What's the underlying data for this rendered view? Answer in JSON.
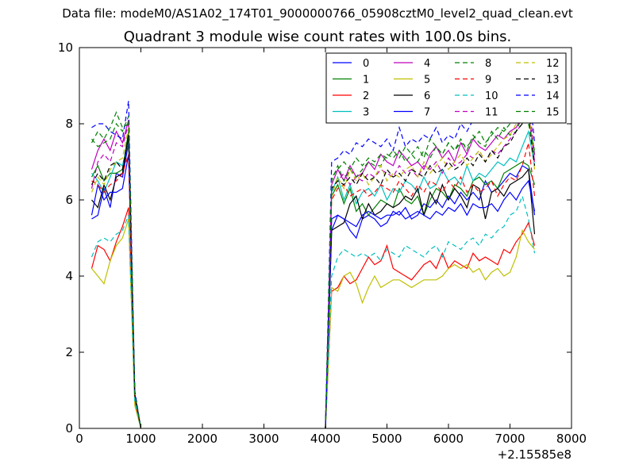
{
  "suptitle": "Data file: modeM0/AS1A02_174T01_9000000766_05908cztM0_level2_quad_clean.evt",
  "chart_data": {
    "type": "line",
    "title": "Quadrant 3 module wise count rates with 100.0s bins.",
    "xlabel": "",
    "ylabel": "",
    "x_offset_label": "+2.15585e8",
    "xlim": [
      0,
      8000
    ],
    "ylim": [
      0,
      10
    ],
    "xticks": [
      "0",
      "1000",
      "2000",
      "3000",
      "4000",
      "5000",
      "6000",
      "7000",
      "8000"
    ],
    "yticks": [
      "0",
      "2",
      "4",
      "6",
      "8",
      "10"
    ],
    "grid": false,
    "legend_position": "top-right",
    "legend_columns": 4,
    "x_segments": [
      [
        200,
        300,
        400,
        500,
        600,
        700,
        800,
        900,
        1000
      ],
      [
        4000,
        4100,
        4200,
        4300,
        4400,
        4500,
        4600,
        4700,
        4800,
        4900,
        5000,
        5100,
        5200,
        5300,
        5400,
        5500,
        5600,
        5700,
        5800,
        5900,
        6000,
        6100,
        6200,
        6300,
        6400,
        6500,
        6600,
        6700,
        6800,
        6900,
        7000,
        7100,
        7200,
        7300,
        7400
      ]
    ],
    "series": [
      {
        "name": "0",
        "color": "#0000ff",
        "dashed": false,
        "values": [
          [
            5.5,
            5.6,
            6.3,
            5.8,
            6.7,
            6.6,
            7.5,
            0.8,
            0
          ],
          [
            0,
            5.2,
            5.6,
            5.5,
            5.2,
            5.0,
            5.5,
            5.6,
            5.5,
            5.3,
            5.4,
            5.7,
            5.6,
            5.8,
            5.5,
            5.6,
            5.9,
            5.8,
            6.0,
            5.8,
            6.1,
            5.9,
            6.2,
            6.0,
            6.2,
            6.0,
            6.5,
            6.2,
            6.3,
            6.5,
            6.7,
            6.6,
            6.9,
            6.8,
            5.6
          ]
        ]
      },
      {
        "name": "1",
        "color": "#008000",
        "dashed": false,
        "values": [
          [
            6.6,
            6.9,
            6.5,
            6.7,
            6.7,
            6.8,
            7.8,
            0.9,
            0
          ],
          [
            0,
            6.1,
            6.4,
            5.9,
            6.3,
            5.7,
            5.9,
            5.6,
            5.8,
            6.0,
            5.9,
            5.8,
            6.3,
            6.0,
            5.9,
            6.1,
            5.6,
            6.0,
            6.3,
            6.2,
            6.0,
            6.4,
            6.3,
            6.1,
            6.5,
            6.6,
            6.4,
            6.5,
            6.3,
            6.7,
            6.8,
            6.9,
            7.0,
            6.9,
            6.4
          ]
        ]
      },
      {
        "name": "2",
        "color": "#ff0000",
        "dashed": false,
        "values": [
          [
            4.2,
            4.8,
            4.7,
            4.4,
            4.9,
            5.3,
            5.8,
            0.7,
            0
          ],
          [
            0,
            3.6,
            3.7,
            4.0,
            3.8,
            3.9,
            4.2,
            4.5,
            4.3,
            4.4,
            4.8,
            4.2,
            4.1,
            4.0,
            3.9,
            4.1,
            4.3,
            4.4,
            4.2,
            4.6,
            4.2,
            4.4,
            4.3,
            4.2,
            4.6,
            4.4,
            4.5,
            4.4,
            4.3,
            4.7,
            4.6,
            4.9,
            5.1,
            5.4,
            4.8
          ]
        ]
      },
      {
        "name": "3",
        "color": "#00bfbf",
        "dashed": false,
        "values": [
          [
            6.7,
            6.5,
            6.2,
            6.6,
            7.0,
            6.9,
            7.6,
            0.9,
            0
          ],
          [
            0,
            6.2,
            6.6,
            6.0,
            6.4,
            5.9,
            6.2,
            6.3,
            6.1,
            6.4,
            6.0,
            6.3,
            6.2,
            6.5,
            6.4,
            6.2,
            6.6,
            6.3,
            6.4,
            6.8,
            6.5,
            6.6,
            6.4,
            6.9,
            6.5,
            6.7,
            6.6,
            6.8,
            7.0,
            6.9,
            7.1,
            7.0,
            7.4,
            7.8,
            6.9
          ]
        ]
      },
      {
        "name": "4",
        "color": "#bf00bf",
        "dashed": false,
        "values": [
          [
            6.8,
            7.3,
            7.6,
            7.3,
            7.8,
            7.5,
            8.1,
            0.9,
            0
          ],
          [
            0,
            6.4,
            6.8,
            6.5,
            6.9,
            6.6,
            6.7,
            7.0,
            6.8,
            7.2,
            7.0,
            6.9,
            7.3,
            7.1,
            6.9,
            7.0,
            6.8,
            7.2,
            7.4,
            7.1,
            7.3,
            7.0,
            7.5,
            7.2,
            7.6,
            7.4,
            7.3,
            7.5,
            7.7,
            7.6,
            7.8,
            7.9,
            8.2,
            8.3,
            7.0
          ]
        ]
      },
      {
        "name": "5",
        "color": "#bfbf00",
        "dashed": false,
        "values": [
          [
            4.2,
            4.0,
            3.8,
            4.4,
            4.8,
            5.0,
            5.5,
            0.6,
            0
          ],
          [
            0,
            3.7,
            3.6,
            4.0,
            4.1,
            3.8,
            3.3,
            3.7,
            4.0,
            3.7,
            3.8,
            3.9,
            3.9,
            3.8,
            3.7,
            3.8,
            3.9,
            3.9,
            3.9,
            4.0,
            4.2,
            4.3,
            4.2,
            4.3,
            4.1,
            4.2,
            3.9,
            4.1,
            4.2,
            4.0,
            4.1,
            4.5,
            5.2,
            4.9,
            4.7
          ]
        ]
      },
      {
        "name": "6",
        "color": "#000000",
        "dashed": false,
        "values": [
          [
            6.0,
            5.8,
            6.4,
            6.0,
            6.6,
            6.7,
            7.7,
            0.9,
            0
          ],
          [
            0,
            5.2,
            5.3,
            5.4,
            5.9,
            6.1,
            5.5,
            5.9,
            5.6,
            5.7,
            5.9,
            5.8,
            5.9,
            6.1,
            6.0,
            6.3,
            5.6,
            6.2,
            5.9,
            6.4,
            6.0,
            6.3,
            6.1,
            5.8,
            6.4,
            6.3,
            5.5,
            6.2,
            6.3,
            6.1,
            6.4,
            6.5,
            6.6,
            6.8,
            5.1
          ]
        ]
      },
      {
        "name": "7",
        "color": "#0000ff",
        "dashed": false,
        "values": [
          [
            5.6,
            6.4,
            6.0,
            6.2,
            6.2,
            6.3,
            7.2,
            0.8,
            0
          ],
          [
            0,
            5.5,
            5.6,
            5.5,
            5.4,
            5.3,
            5.6,
            5.7,
            5.6,
            5.5,
            5.6,
            5.6,
            5.7,
            5.5,
            5.6,
            5.7,
            5.6,
            5.5,
            5.7,
            5.6,
            5.8,
            5.7,
            5.9,
            5.6,
            5.9,
            5.8,
            5.8,
            5.9,
            5.7,
            6.0,
            6.2,
            6.0,
            6.3,
            6.5,
            5.7
          ]
        ]
      },
      {
        "name": "8",
        "color": "#008000",
        "dashed": true,
        "values": [
          [
            7.5,
            7.8,
            7.6,
            7.9,
            8.3,
            7.9,
            8.0,
            0.9,
            0
          ],
          [
            0,
            6.5,
            6.9,
            6.5,
            6.8,
            6.6,
            6.8,
            7.0,
            6.9,
            6.9,
            7.2,
            7.1,
            7.3,
            7.0,
            7.2,
            7.4,
            7.1,
            7.6,
            7.4,
            7.2,
            7.5,
            7.3,
            7.6,
            7.3,
            7.7,
            7.5,
            7.4,
            7.8,
            7.6,
            7.9,
            7.7,
            7.8,
            8.2,
            8.4,
            7.2
          ]
        ]
      },
      {
        "name": "9",
        "color": "#ff0000",
        "dashed": true,
        "values": [
          [
            6.5,
            6.4,
            6.2,
            6.4,
            6.5,
            6.7,
            7.2,
            0.8,
            0
          ],
          [
            0,
            6.0,
            6.3,
            6.4,
            6.1,
            6.2,
            6.3,
            6.1,
            6.2,
            6.4,
            6.3,
            6.2,
            6.5,
            6.3,
            6.1,
            6.4,
            6.2,
            6.5,
            6.4,
            6.2,
            6.5,
            6.3,
            6.6,
            6.2,
            6.4,
            6.2,
            6.3,
            6.5,
            6.1,
            6.4,
            6.6,
            6.5,
            6.9,
            7.5,
            6.1
          ]
        ]
      },
      {
        "name": "10",
        "color": "#00bfbf",
        "dashed": true,
        "values": [
          [
            4.5,
            4.9,
            5.0,
            4.9,
            5.1,
            5.2,
            5.6,
            0.7,
            0
          ],
          [
            0,
            4.0,
            4.5,
            4.7,
            4.6,
            4.5,
            4.6,
            4.5,
            4.6,
            4.4,
            4.7,
            4.6,
            4.5,
            4.8,
            4.7,
            4.6,
            4.5,
            4.7,
            4.8,
            4.5,
            4.9,
            4.8,
            4.7,
            4.9,
            5.0,
            4.8,
            5.1,
            5.0,
            5.2,
            5.3,
            5.6,
            5.7,
            6.1,
            5.5,
            4.6
          ]
        ]
      },
      {
        "name": "11",
        "color": "#bf00bf",
        "dashed": true,
        "values": [
          [
            6.3,
            7.0,
            7.2,
            7.0,
            7.5,
            7.4,
            8.0,
            0.9,
            0
          ],
          [
            0,
            6.3,
            6.5,
            6.7,
            6.4,
            6.6,
            6.5,
            6.7,
            6.6,
            6.8,
            6.7,
            6.6,
            6.9,
            6.7,
            6.8,
            6.6,
            6.9,
            6.8,
            7.0,
            6.7,
            7.1,
            6.9,
            7.0,
            7.2,
            7.1,
            7.3,
            7.0,
            7.3,
            7.2,
            7.4,
            7.6,
            7.8,
            8.0,
            8.8,
            7.1
          ]
        ]
      },
      {
        "name": "12",
        "color": "#bfbf00",
        "dashed": true,
        "values": [
          [
            6.2,
            6.6,
            6.4,
            6.8,
            7.0,
            7.1,
            7.9,
            0.9,
            0
          ],
          [
            0,
            6.1,
            6.6,
            6.3,
            6.8,
            6.5,
            6.7,
            6.4,
            6.6,
            6.9,
            6.5,
            6.7,
            6.6,
            6.8,
            6.9,
            6.6,
            7.0,
            6.7,
            6.9,
            7.1,
            6.8,
            7.0,
            7.2,
            6.9,
            7.1,
            7.3,
            7.0,
            7.2,
            7.4,
            7.6,
            7.7,
            8.0,
            8.2,
            8.6,
            6.8
          ]
        ]
      },
      {
        "name": "13",
        "color": "#000000",
        "dashed": true,
        "values": [
          [
            6.4,
            6.7,
            6.5,
            6.9,
            7.0,
            6.8,
            7.7,
            0.9,
            0
          ],
          [
            0,
            6.3,
            6.5,
            6.4,
            6.6,
            6.4,
            6.7,
            6.5,
            6.6,
            6.4,
            6.8,
            6.6,
            6.7,
            6.5,
            6.8,
            6.7,
            6.6,
            6.9,
            6.7,
            6.8,
            7.0,
            6.8,
            6.9,
            7.1,
            6.9,
            7.2,
            7.0,
            7.3,
            7.1,
            7.4,
            7.5,
            7.8,
            8.0,
            8.1,
            6.9
          ]
        ]
      },
      {
        "name": "14",
        "color": "#0000ff",
        "dashed": true,
        "values": [
          [
            7.9,
            8.0,
            8.0,
            7.8,
            7.7,
            7.6,
            8.6,
            1.0,
            0
          ],
          [
            0,
            7.0,
            7.1,
            7.3,
            7.2,
            7.5,
            7.4,
            7.6,
            7.5,
            7.4,
            7.6,
            7.3,
            7.9,
            7.4,
            7.6,
            7.5,
            7.7,
            7.6,
            7.9,
            7.5,
            7.7,
            7.6,
            8.0,
            7.8,
            8.1,
            8.3,
            8.2,
            8.4,
            8.5,
            8.6,
            8.8,
            9.0,
            9.4,
            9.1,
            7.5
          ]
        ]
      },
      {
        "name": "15",
        "color": "#008000",
        "dashed": true,
        "values": [
          [
            7.6,
            7.4,
            7.5,
            7.6,
            8.0,
            7.8,
            8.2,
            0.9,
            0
          ],
          [
            0,
            6.6,
            6.8,
            7.0,
            6.8,
            7.1,
            6.9,
            7.1,
            7.0,
            7.2,
            7.1,
            7.3,
            7.1,
            7.4,
            7.2,
            7.0,
            7.3,
            7.1,
            7.4,
            7.2,
            7.5,
            7.3,
            7.5,
            7.4,
            7.6,
            7.8,
            7.5,
            7.7,
            7.9,
            7.8,
            8.0,
            8.2,
            8.5,
            8.0,
            7.3
          ]
        ]
      }
    ]
  }
}
